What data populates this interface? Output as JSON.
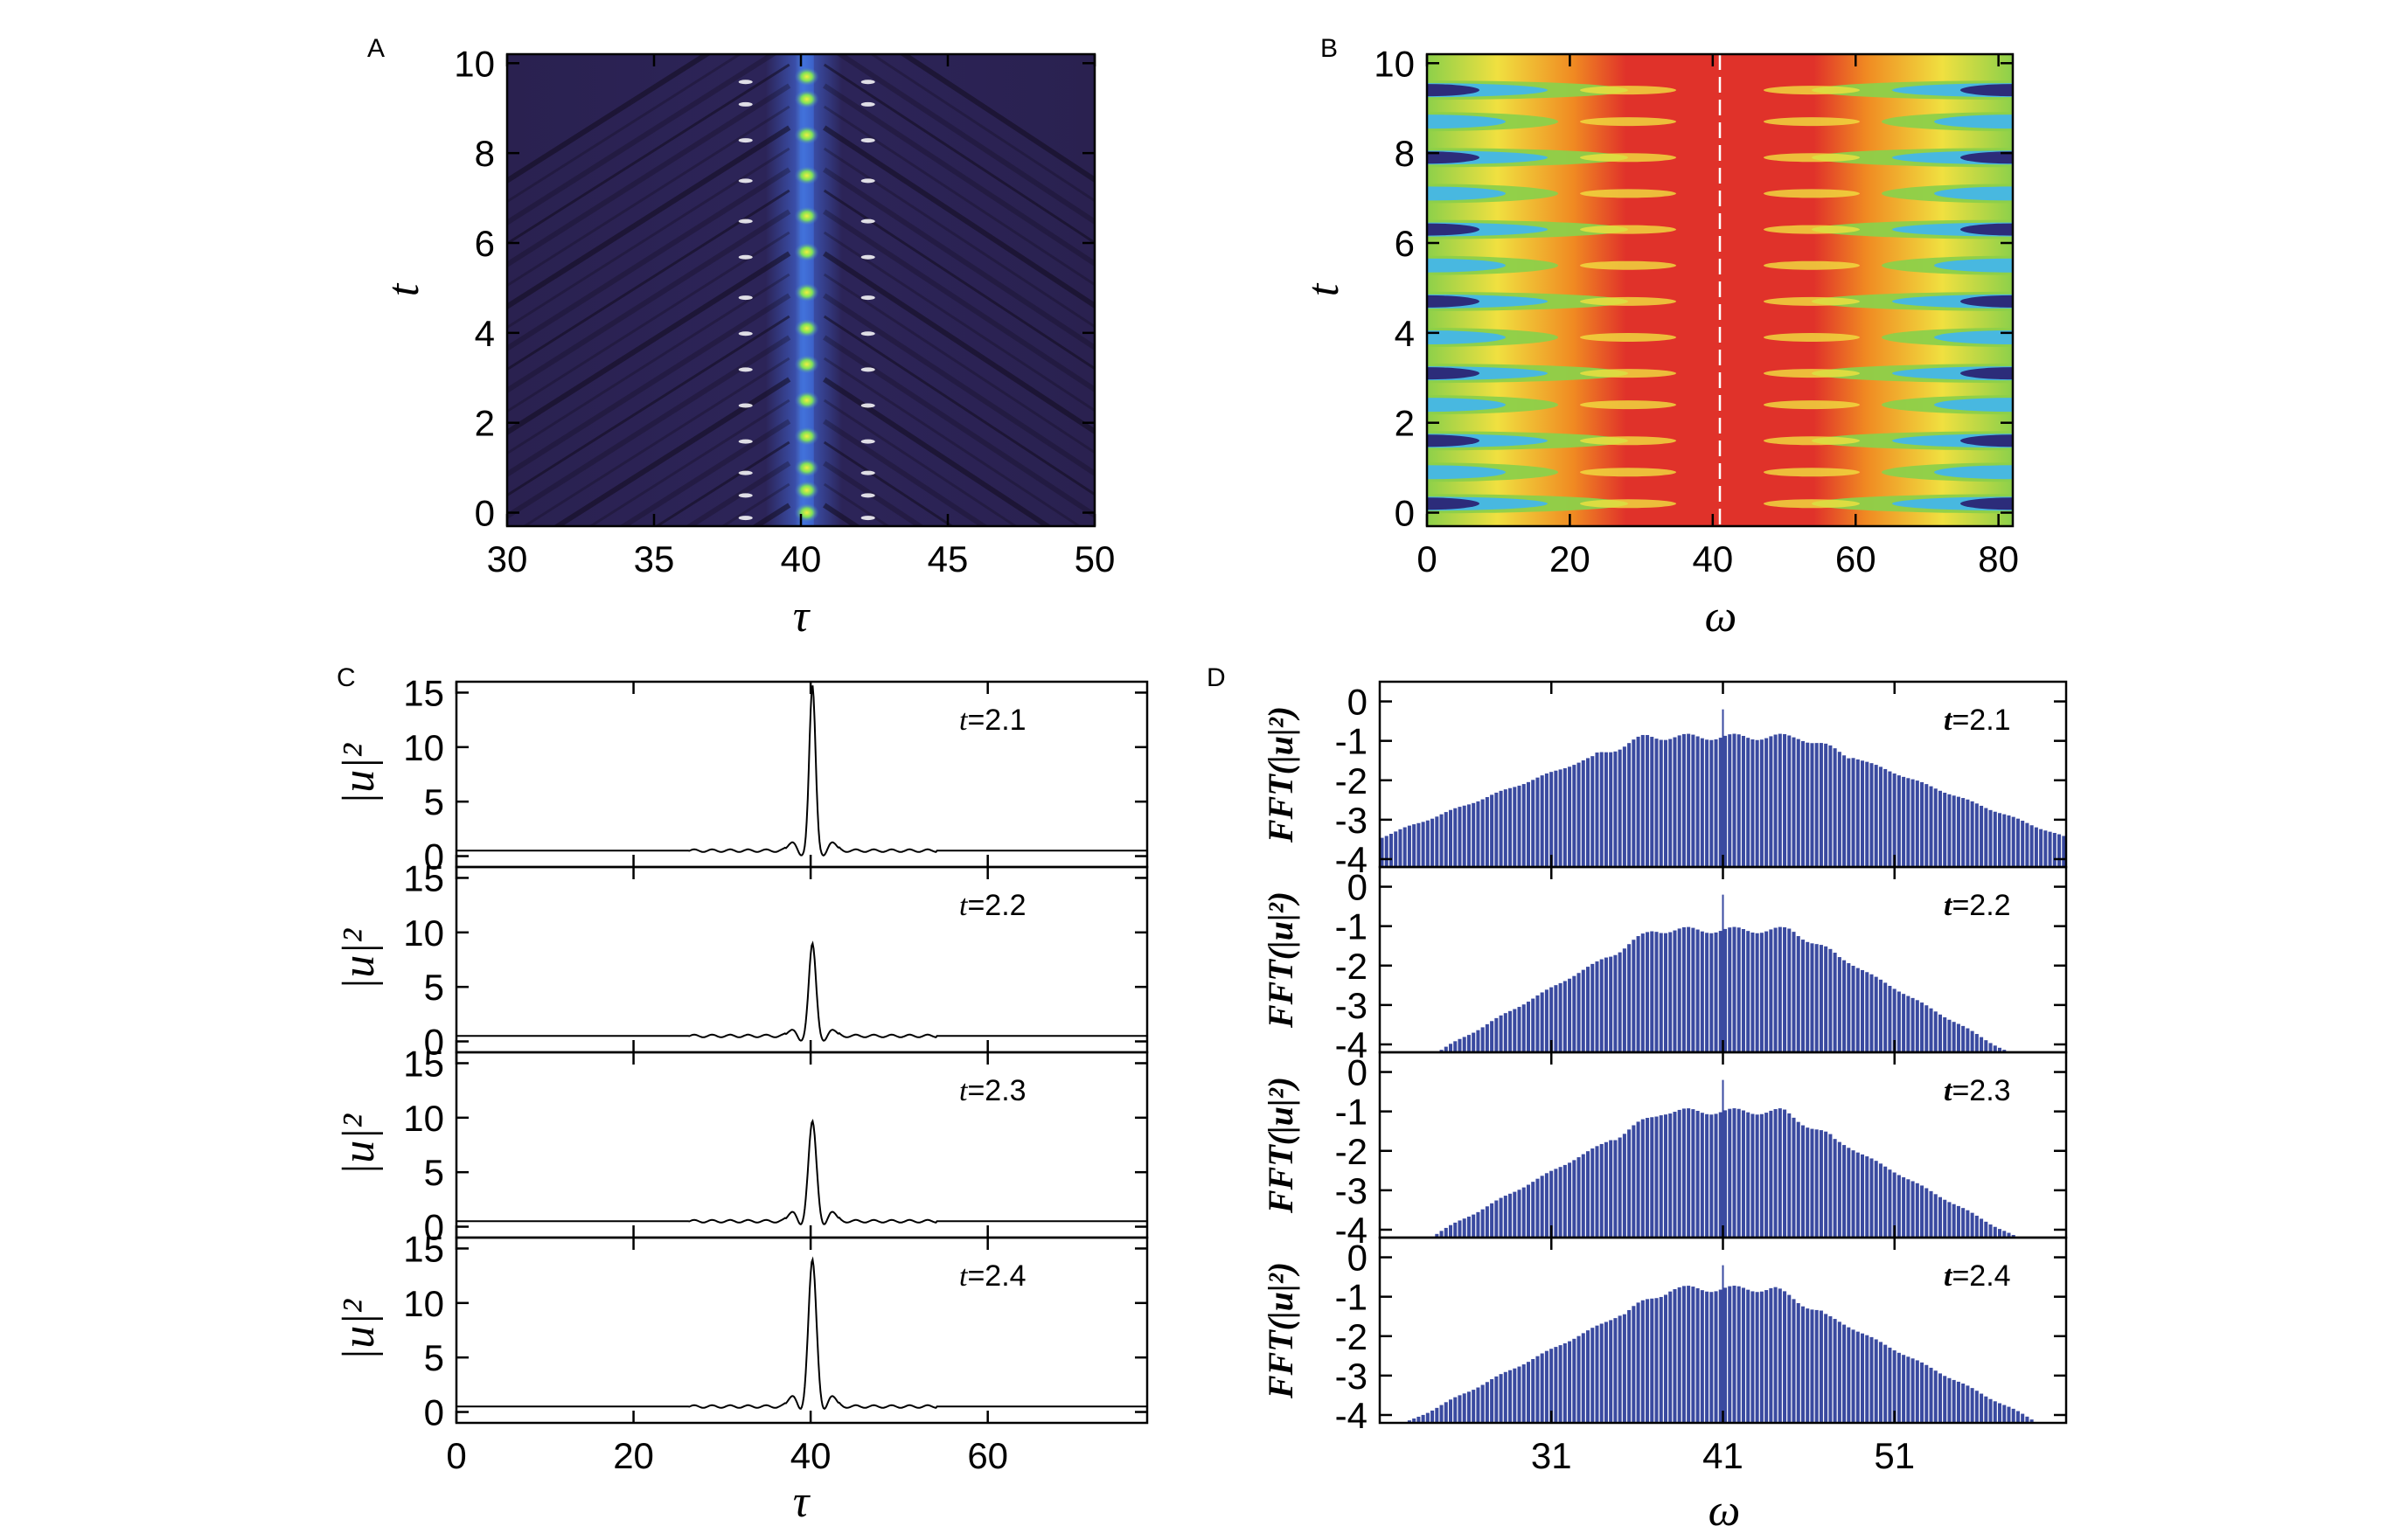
{
  "chart_data": [
    {
      "panel": "A",
      "type": "heatmap",
      "title": "",
      "xlabel": "τ",
      "ylabel": "t",
      "xlim": [
        30,
        50
      ],
      "ylim": [
        -0.3,
        10.2
      ],
      "xticks": [
        "30",
        "35",
        "40",
        "45",
        "50"
      ],
      "xtick_values": [
        30,
        35,
        40,
        45,
        50
      ],
      "yticks": [
        "0",
        "2",
        "4",
        "6",
        "8",
        "10"
      ],
      "ytick_values": [
        0,
        2,
        4,
        6,
        8,
        10
      ],
      "colors": {
        "background": "#2a2150",
        "dark": "#120c1e",
        "glow": "#3e6cd8",
        "peak": "#7ee05a",
        "hot": "#f0f040"
      },
      "peak_center_tau": 40.2,
      "peak_times": [
        0.0,
        0.5,
        1.0,
        1.7,
        2.5,
        3.3,
        4.1,
        4.9,
        5.8,
        6.6,
        7.5,
        8.4,
        9.2,
        9.7
      ]
    },
    {
      "panel": "B",
      "type": "heatmap",
      "title": "",
      "xlabel": "ω",
      "ylabel": "t",
      "xlim": [
        0,
        82
      ],
      "ylim": [
        -0.3,
        10.2
      ],
      "xticks": [
        "0",
        "20",
        "40",
        "60",
        "80"
      ],
      "xtick_values": [
        0,
        20,
        40,
        60,
        80
      ],
      "yticks": [
        "0",
        "2",
        "4",
        "6",
        "8",
        "10"
      ],
      "ytick_values": [
        0,
        2,
        4,
        6,
        8,
        10
      ],
      "colors": {
        "red": "#e0322a",
        "orange": "#f08a22",
        "yellow": "#f0e040",
        "green": "#8cd04a",
        "cyan": "#48b8e0",
        "blue": "#2c2c7a",
        "center_line": "#ffffff"
      },
      "center_omega": 41,
      "band_times": [
        0.2,
        0.9,
        1.6,
        2.4,
        3.1,
        3.9,
        4.7,
        5.5,
        6.3,
        7.1,
        7.9,
        8.7,
        9.4
      ]
    },
    {
      "panel": "C",
      "type": "line",
      "xlabel": "τ",
      "ylabel": "|u|²",
      "xlim": [
        0,
        78
      ],
      "ylim": [
        -1,
        16
      ],
      "xticks": [
        "0",
        "20",
        "40",
        "60"
      ],
      "xtick_values": [
        0,
        20,
        40,
        60
      ],
      "yticks": [
        "0",
        "5",
        "10",
        "15"
      ],
      "ytick_values": [
        0,
        5,
        10,
        15
      ],
      "baseline": 0.5,
      "peak_center": 40.2,
      "series": [
        {
          "name": "t=2.1",
          "label_t": "t",
          "label_val": "=2.1",
          "peak": 15.2,
          "width": 0.35,
          "side_lobe": 0.8
        },
        {
          "name": "t=2.2",
          "label_t": "t",
          "label_val": "=2.2",
          "peak": 8.5,
          "width": 0.4,
          "side_lobe": 0.6
        },
        {
          "name": "t=2.3",
          "label_t": "t",
          "label_val": "=2.3",
          "peak": 9.2,
          "width": 0.45,
          "side_lobe": 0.9
        },
        {
          "name": "t=2.4",
          "label_t": "t",
          "label_val": "=2.4",
          "peak": 13.5,
          "width": 0.45,
          "side_lobe": 1.0
        }
      ]
    },
    {
      "panel": "D",
      "type": "bar",
      "xlabel": "ω",
      "ylabel": "FFT(|u|²)",
      "xlim": [
        21,
        61
      ],
      "ylim": [
        -4.2,
        0.5
      ],
      "xticks": [
        "31",
        "41",
        "51"
      ],
      "xtick_values": [
        31,
        41,
        51
      ],
      "yticks": [
        "0",
        "-1",
        "-2",
        "-3",
        "-4"
      ],
      "ytick_values": [
        0,
        -1,
        -2,
        -3,
        -4
      ],
      "bar_color": "#3a4aa0",
      "center": 41,
      "series": [
        {
          "name": "t=2.1",
          "label_t": "t",
          "label_val": "=2.1",
          "top": -0.9,
          "spike": -0.2,
          "slope": 0.165,
          "plateau": 4.5
        },
        {
          "name": "t=2.2",
          "label_t": "t",
          "label_val": "=2.2",
          "top": -1.1,
          "spike": -0.2,
          "slope": 0.245,
          "plateau": 4.0
        },
        {
          "name": "t=2.3",
          "label_t": "t",
          "label_val": "=2.3",
          "top": -1.0,
          "spike": -0.2,
          "slope": 0.235,
          "plateau": 3.5
        },
        {
          "name": "t=2.4",
          "label_t": "t",
          "label_val": "=2.4",
          "top": -0.8,
          "spike": -0.2,
          "slope": 0.22,
          "plateau": 3.0
        }
      ]
    }
  ],
  "panel_letters": {
    "a": "A",
    "b": "B",
    "c": "C",
    "d": "D"
  }
}
